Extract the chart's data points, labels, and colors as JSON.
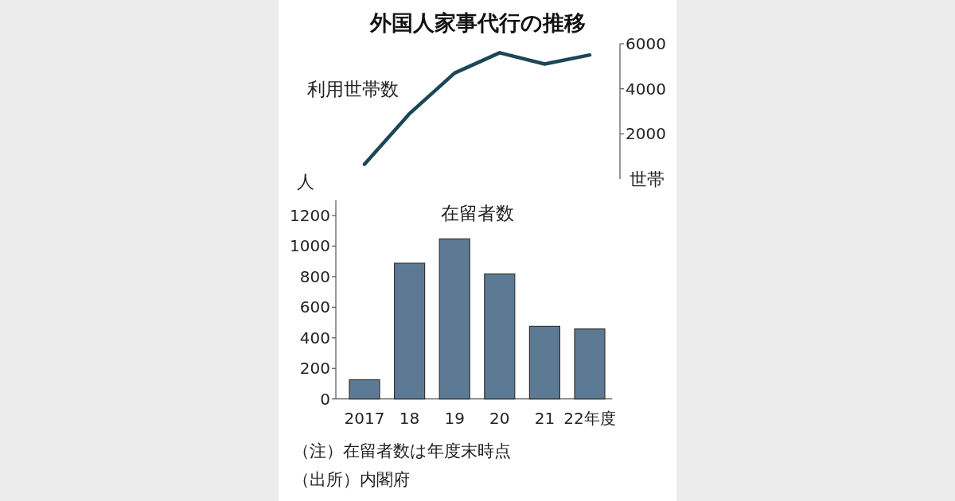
{
  "chart_data": [
    {
      "type": "line",
      "title": "外国人家事代行の推移",
      "categories": [
        null,
        null,
        null,
        null,
        null,
        null
      ],
      "ylabel": "世帯",
      "ylim": [
        0,
        6000
      ],
      "yticks": [
        2000,
        4000,
        6000
      ],
      "tick_labels": "y",
      "series": [
        {
          "name": "利用世帯数",
          "color": "#1d4657",
          "values": [
            650,
            2900,
            4700,
            5600,
            5100,
            5500
          ]
        }
      ]
    },
    {
      "type": "bar",
      "categories": [
        "2017",
        "18",
        "19",
        "20",
        "21",
        "22年度"
      ],
      "ylabel": "人",
      "ylim": [
        0,
        1300
      ],
      "yticks": [
        0,
        200,
        400,
        600,
        800,
        1000,
        1200
      ],
      "series": [
        {
          "name": "在留者数",
          "color": "#5d7a95",
          "values": [
            126,
            888,
            1047,
            818,
            475,
            458
          ]
        }
      ],
      "annotations": [
        "（注）在留者数は年度末時点",
        "（出所）内閣府"
      ]
    }
  ]
}
